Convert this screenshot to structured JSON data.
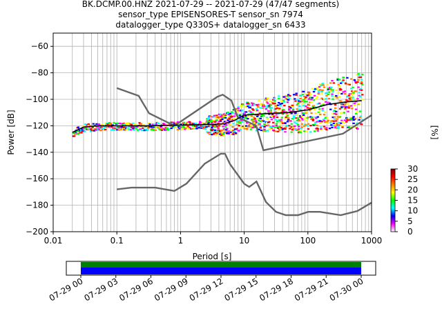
{
  "title_lines": [
    "BK.DCMP.00.HNZ   2021-07-29 -- 2021-07-29  (47/47 segments)",
    "sensor_type EPISENSORES-T sensor_sn 7974",
    "datalogger_type Q330S+ datalogger_sn 6433"
  ],
  "chart_data": [
    {
      "type": "heatmap",
      "xlabel": "Period [s]",
      "ylabel": "Power [dB]",
      "xscale": "log",
      "xlim": [
        0.01,
        1000
      ],
      "ylim": [
        -200,
        -50
      ],
      "grid": true,
      "x_ticks": [
        "0.01",
        "0.1",
        "1",
        "10",
        "100",
        "1000"
      ],
      "y_ticks": [
        "−200",
        "−180",
        "−160",
        "−140",
        "−120",
        "−100",
        "−80",
        "−60"
      ],
      "colorbar": {
        "label": "[%]",
        "range": [
          0,
          30
        ],
        "ticks": [
          "0",
          "5",
          "10",
          "15",
          "20",
          "25",
          "30"
        ],
        "colors": [
          "#ffffff",
          "#ff00ff",
          "#0000ff",
          "#00ffff",
          "#00ff00",
          "#ffff00",
          "#ff8000",
          "#ff0000",
          "#800000"
        ]
      },
      "noise_models": {
        "high": [
          [
            0.1,
            -91.5
          ],
          [
            0.22,
            -97.4
          ],
          [
            0.32,
            -110.5
          ],
          [
            0.8,
            -120
          ],
          [
            3.8,
            -98
          ],
          [
            4.6,
            -96.5
          ],
          [
            6.3,
            -101
          ],
          [
            7.9,
            -113.5
          ],
          [
            15.4,
            -120
          ],
          [
            20,
            -138.5
          ],
          [
            354.8,
            -126
          ],
          [
            1000,
            -112
          ]
        ],
        "low": [
          [
            0.1,
            -168
          ],
          [
            0.17,
            -166.7
          ],
          [
            0.4,
            -166.7
          ],
          [
            0.8,
            -169.2
          ],
          [
            1.24,
            -163.7
          ],
          [
            2.4,
            -148.6
          ],
          [
            4.3,
            -141.1
          ],
          [
            5,
            -141.1
          ],
          [
            6,
            -149
          ],
          [
            10,
            -163.8
          ],
          [
            12,
            -166.2
          ],
          [
            15.6,
            -162.1
          ],
          [
            21.9,
            -177.5
          ],
          [
            31.6,
            -185
          ],
          [
            45,
            -187.5
          ],
          [
            70,
            -187.5
          ],
          [
            101,
            -185
          ],
          [
            154,
            -185
          ],
          [
            328,
            -187.5
          ],
          [
            600,
            -184.4
          ],
          [
            1000,
            -178
          ]
        ]
      },
      "mean_curve": [
        [
          0.02,
          -125
        ],
        [
          0.03,
          -121
        ],
        [
          0.05,
          -120
        ],
        [
          0.1,
          -120
        ],
        [
          0.3,
          -120
        ],
        [
          1,
          -119.5
        ],
        [
          3,
          -119
        ],
        [
          5,
          -118.5
        ],
        [
          7,
          -116
        ],
        [
          10,
          -112
        ],
        [
          20,
          -111
        ],
        [
          50,
          -110
        ],
        [
          100,
          -108
        ],
        [
          200,
          -104
        ],
        [
          400,
          -102
        ],
        [
          700,
          -101
        ]
      ]
    },
    {
      "type": "timeline",
      "x_ticks": [
        "07-29 00",
        "07-29 03",
        "07-29 06",
        "07-29 09",
        "07-29 12",
        "07-29 15",
        "07-29 18",
        "07-29 21",
        "07-30 00"
      ],
      "coverage_colors": {
        "top": "#008000",
        "bottom": "#0000ff"
      }
    }
  ]
}
